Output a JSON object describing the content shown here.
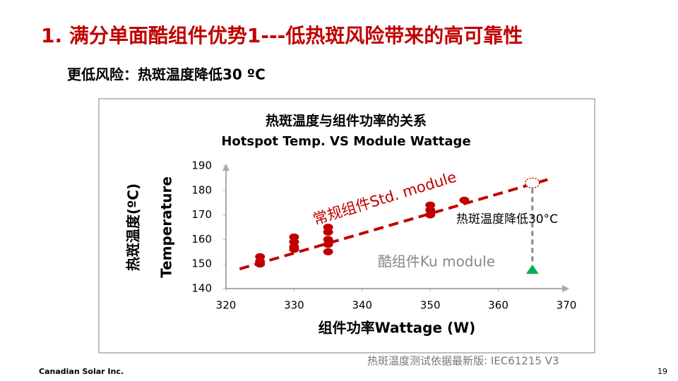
{
  "slide": {
    "title": "1. 满分单面酷组件优势1---低热斑风险带来的高可靠性",
    "subtitle": "更低风险：热斑温度降低30 ºC",
    "note": "热斑温度测试依据最新版: IEC61215 V3",
    "footer": "Canadian Solar Inc.",
    "page": "19"
  },
  "chart_data": {
    "type": "scatter",
    "title": "热斑温度与组件功率的关系",
    "subtitle": "Hotspot Temp. VS Module Wattage",
    "x_label": "组件功率Wattage (W)",
    "y_label": "热斑温度(ºC)",
    "y_label_en": "Temperature",
    "xlim": [
      320,
      370
    ],
    "xticks": [
      320,
      330,
      340,
      350,
      360,
      370
    ],
    "ylim": [
      140,
      190
    ],
    "yticks": [
      140,
      150,
      160,
      170,
      180,
      190
    ],
    "grid": false,
    "series": [
      {
        "name": "常规组件Std. module",
        "color": "#c00000",
        "x": [
          325,
          325,
          325,
          330,
          330,
          330,
          330,
          335,
          335,
          335,
          335,
          335,
          350,
          350,
          350,
          355
        ],
        "y": [
          153,
          151,
          150,
          161,
          159,
          157,
          156,
          165,
          163,
          160,
          158,
          155,
          174,
          172,
          170,
          176
        ]
      },
      {
        "name": "酷组件Ku module",
        "color": "#00b050",
        "x": [
          365
        ],
        "y": [
          148
        ]
      }
    ],
    "trend_line": {
      "color": "#c00000",
      "x": [
        322,
        368
      ],
      "y": [
        148,
        185
      ]
    },
    "target": {
      "x": 365,
      "y": 183
    },
    "annotation": "热斑温度降低30°C"
  }
}
